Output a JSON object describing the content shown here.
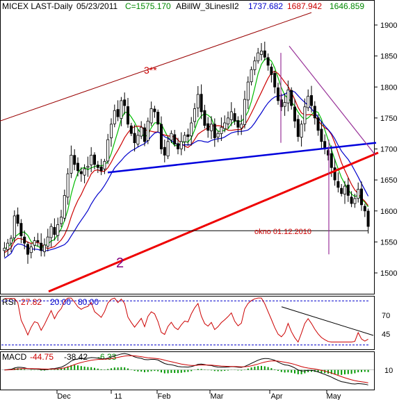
{
  "header": {
    "symbol": "MICEX LAST-Daily",
    "date": "05/23/2011",
    "close_label": "C=1575.170",
    "indicator": "ABillW_3LinesII2",
    "ind_val_1": "1737.682",
    "ind_val_2": "1687.942",
    "ind_val_3": "1646.859"
  },
  "colors": {
    "background": "#ffffff",
    "price_bars": "#000000",
    "ma_blue": "#0000cc",
    "ma_red": "#cc0000",
    "ma_green": "#00bb00",
    "trend_red": "#ee0000",
    "trend_blue": "#0000dd",
    "channel_brown": "#990000",
    "purple": "#993399",
    "rsi_line": "#cc0000",
    "rsi_levels": "#0000cc",
    "macd_line": "#000000",
    "macd_signal": "#cc0000",
    "macd_hist": "#009900"
  },
  "annotations": {
    "label_3": "3**",
    "label_2": "2",
    "okno": "okno 01.12.2010"
  },
  "rsi_header": {
    "name": "RSI",
    "value": "27.82",
    "level_low": "20.00",
    "level_high": "80.00",
    "ticks": [
      "70",
      "45"
    ]
  },
  "macd_header": {
    "name": "MACD",
    "value1": "-44.75",
    "value2": "-38.42",
    "value3": "-6.33",
    "ticks": [
      "10"
    ]
  },
  "x_labels": [
    "Dec",
    "11",
    "Feb",
    "Mar",
    "Apr",
    "May"
  ],
  "chart_data": {
    "type": "candlestick",
    "title": "MICEX LAST-Daily",
    "y_ticks": [
      1500,
      1550,
      1600,
      1650,
      1700,
      1750,
      1800,
      1850,
      1900
    ],
    "ylim": [
      1460,
      1920
    ],
    "grid": false,
    "close_series": [
      1540,
      1548,
      1556,
      1592,
      1580,
      1560,
      1548,
      1530,
      1542,
      1552,
      1550,
      1536,
      1545,
      1558,
      1575,
      1562,
      1578,
      1590,
      1625,
      1660,
      1690,
      1675,
      1665,
      1660,
      1668,
      1672,
      1690,
      1675,
      1670,
      1665,
      1680,
      1715,
      1740,
      1762,
      1752,
      1778,
      1770,
      1740,
      1725,
      1710,
      1722,
      1735,
      1712,
      1745,
      1765,
      1760,
      1740,
      1700,
      1690,
      1712,
      1725,
      1708,
      1700,
      1712,
      1722,
      1720,
      1742,
      1765,
      1788,
      1760,
      1738,
      1730,
      1740,
      1718,
      1725,
      1735,
      1742,
      1750,
      1760,
      1745,
      1735,
      1740,
      1780,
      1808,
      1828,
      1842,
      1855,
      1858,
      1848,
      1835,
      1820,
      1800,
      1778,
      1768,
      1775,
      1795,
      1770,
      1745,
      1720,
      1740,
      1768,
      1785,
      1770,
      1750,
      1730,
      1712,
      1700,
      1690,
      1670,
      1650,
      1638,
      1628,
      1640,
      1625,
      1612,
      1620,
      1635,
      1610,
      1600,
      1575
    ],
    "moving_averages": [
      {
        "color_key": "ma_green",
        "last_value": 1646.859
      },
      {
        "color_key": "ma_red",
        "last_value": 1687.942
      },
      {
        "color_key": "ma_blue",
        "last_value": 1737.682
      }
    ],
    "horizontal_line": {
      "value": 1568,
      "label": "okno 01.12.2010"
    },
    "rsi": {
      "current": 27.82,
      "levels": [
        20,
        80
      ]
    },
    "macd": {
      "macd": -44.75,
      "signal": -38.42,
      "histogram": -6.33
    }
  }
}
